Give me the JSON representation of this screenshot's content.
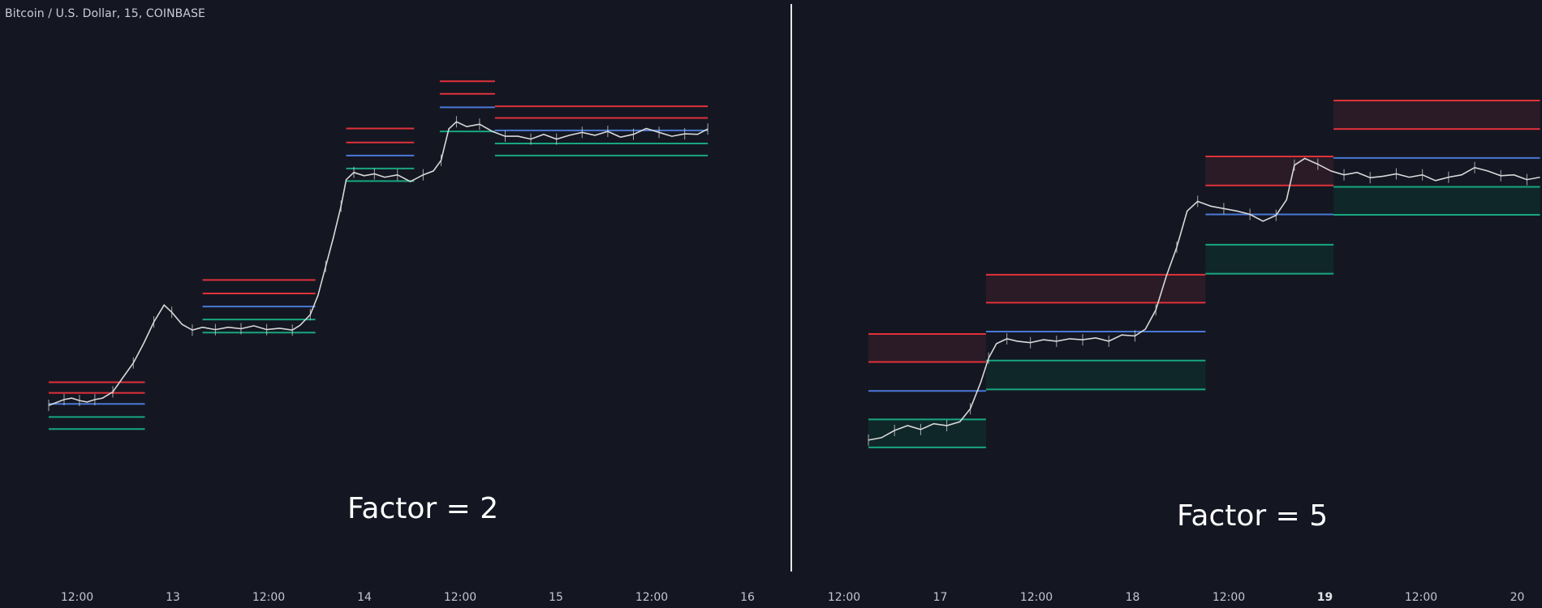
{
  "header": {
    "symbol_title": "Bitcoin / U.S. Dollar, 15, COINBASE"
  },
  "colors": {
    "background": "#141722",
    "resistance": "#e0313a",
    "support": "#18a67f",
    "pivot": "#4a78d6",
    "candle": "#d8d8d8",
    "divider": "#e6e6e6",
    "resistance_fill": "#2a1b26",
    "support_fill": "#10272a"
  },
  "chart_data": [
    {
      "type": "line",
      "annotation": "Factor = 2",
      "x_ticks": [
        {
          "label": "12:00",
          "bold": false
        },
        {
          "label": "13",
          "bold": false
        },
        {
          "label": "12:00",
          "bold": false
        },
        {
          "label": "14",
          "bold": false
        },
        {
          "label": "12:00",
          "bold": false
        },
        {
          "label": "15",
          "bold": false
        },
        {
          "label": "12:00",
          "bold": false
        },
        {
          "label": "16",
          "bold": false
        }
      ],
      "price_path": [
        [
          0.0,
          0.748
        ],
        [
          0.006,
          0.742
        ],
        [
          0.012,
          0.736
        ],
        [
          0.018,
          0.733
        ],
        [
          0.024,
          0.738
        ],
        [
          0.03,
          0.741
        ],
        [
          0.036,
          0.736
        ],
        [
          0.042,
          0.733
        ],
        [
          0.05,
          0.72
        ],
        [
          0.058,
          0.69
        ],
        [
          0.066,
          0.66
        ],
        [
          0.074,
          0.62
        ],
        [
          0.082,
          0.575
        ],
        [
          0.09,
          0.54
        ],
        [
          0.096,
          0.555
        ],
        [
          0.104,
          0.58
        ],
        [
          0.112,
          0.592
        ],
        [
          0.12,
          0.586
        ],
        [
          0.13,
          0.591
        ],
        [
          0.14,
          0.586
        ],
        [
          0.15,
          0.589
        ],
        [
          0.16,
          0.583
        ],
        [
          0.17,
          0.591
        ],
        [
          0.18,
          0.588
        ],
        [
          0.19,
          0.592
        ],
        [
          0.196,
          0.582
        ],
        [
          0.204,
          0.56
        ],
        [
          0.21,
          0.52
        ],
        [
          0.216,
          0.46
        ],
        [
          0.222,
          0.4
        ],
        [
          0.228,
          0.335
        ],
        [
          0.232,
          0.28
        ],
        [
          0.238,
          0.265
        ],
        [
          0.246,
          0.272
        ],
        [
          0.254,
          0.268
        ],
        [
          0.262,
          0.275
        ],
        [
          0.272,
          0.27
        ],
        [
          0.282,
          0.284
        ],
        [
          0.292,
          0.27
        ],
        [
          0.3,
          0.262
        ],
        [
          0.306,
          0.24
        ],
        [
          0.312,
          0.175
        ],
        [
          0.318,
          0.16
        ],
        [
          0.326,
          0.17
        ],
        [
          0.336,
          0.165
        ],
        [
          0.346,
          0.18
        ],
        [
          0.356,
          0.19
        ],
        [
          0.366,
          0.19
        ],
        [
          0.376,
          0.196
        ],
        [
          0.386,
          0.186
        ],
        [
          0.396,
          0.196
        ],
        [
          0.406,
          0.188
        ],
        [
          0.416,
          0.182
        ],
        [
          0.426,
          0.188
        ],
        [
          0.436,
          0.18
        ],
        [
          0.446,
          0.192
        ],
        [
          0.456,
          0.186
        ],
        [
          0.466,
          0.174
        ],
        [
          0.476,
          0.182
        ],
        [
          0.486,
          0.19
        ],
        [
          0.496,
          0.185
        ],
        [
          0.506,
          0.186
        ],
        [
          0.514,
          0.175
        ]
      ],
      "levels": [
        {
          "kind": "resistance",
          "value": 0.7,
          "from": 0.0,
          "to": 0.075
        },
        {
          "kind": "resistance",
          "value": 0.722,
          "from": 0.0,
          "to": 0.075
        },
        {
          "kind": "pivot",
          "value": 0.745,
          "from": 0.0,
          "to": 0.075
        },
        {
          "kind": "support",
          "value": 0.772,
          "from": 0.0,
          "to": 0.075
        },
        {
          "kind": "support",
          "value": 0.797,
          "from": 0.0,
          "to": 0.075
        },
        {
          "kind": "resistance",
          "value": 0.488,
          "from": 0.12,
          "to": 0.208
        },
        {
          "kind": "resistance",
          "value": 0.516,
          "from": 0.12,
          "to": 0.208
        },
        {
          "kind": "pivot",
          "value": 0.543,
          "from": 0.12,
          "to": 0.208
        },
        {
          "kind": "support",
          "value": 0.57,
          "from": 0.12,
          "to": 0.208
        },
        {
          "kind": "support",
          "value": 0.597,
          "from": 0.12,
          "to": 0.208
        },
        {
          "kind": "resistance",
          "value": 0.174,
          "from": 0.232,
          "to": 0.285
        },
        {
          "kind": "resistance",
          "value": 0.203,
          "from": 0.232,
          "to": 0.285
        },
        {
          "kind": "pivot",
          "value": 0.23,
          "from": 0.232,
          "to": 0.285
        },
        {
          "kind": "support",
          "value": 0.257,
          "from": 0.232,
          "to": 0.285
        },
        {
          "kind": "support",
          "value": 0.283,
          "from": 0.232,
          "to": 0.285
        },
        {
          "kind": "resistance",
          "value": 0.076,
          "from": 0.305,
          "to": 0.348
        },
        {
          "kind": "resistance",
          "value": 0.102,
          "from": 0.305,
          "to": 0.348
        },
        {
          "kind": "pivot",
          "value": 0.13,
          "from": 0.305,
          "to": 0.348
        },
        {
          "kind": "support",
          "value": 0.18,
          "from": 0.305,
          "to": 0.348
        },
        {
          "kind": "resistance",
          "value": 0.128,
          "from": 0.348,
          "to": 0.514
        },
        {
          "kind": "resistance",
          "value": 0.152,
          "from": 0.348,
          "to": 0.514
        },
        {
          "kind": "pivot",
          "value": 0.178,
          "from": 0.348,
          "to": 0.514
        },
        {
          "kind": "support",
          "value": 0.205,
          "from": 0.348,
          "to": 0.514
        },
        {
          "kind": "support",
          "value": 0.23,
          "from": 0.348,
          "to": 0.514
        }
      ]
    },
    {
      "type": "line",
      "annotation": "Factor = 5",
      "x_ticks": [
        {
          "label": "12:00",
          "bold": false
        },
        {
          "label": "17",
          "bold": false
        },
        {
          "label": "12:00",
          "bold": false
        },
        {
          "label": "18",
          "bold": false
        },
        {
          "label": "12:00",
          "bold": false
        },
        {
          "label": "19",
          "bold": true
        },
        {
          "label": "12:00",
          "bold": false
        },
        {
          "label": "20",
          "bold": false
        }
      ],
      "price_path": [
        [
          0.0,
          0.82
        ],
        [
          0.01,
          0.815
        ],
        [
          0.02,
          0.8
        ],
        [
          0.03,
          0.79
        ],
        [
          0.04,
          0.798
        ],
        [
          0.05,
          0.786
        ],
        [
          0.06,
          0.79
        ],
        [
          0.07,
          0.782
        ],
        [
          0.078,
          0.755
        ],
        [
          0.086,
          0.7
        ],
        [
          0.092,
          0.65
        ],
        [
          0.098,
          0.62
        ],
        [
          0.106,
          0.61
        ],
        [
          0.114,
          0.615
        ],
        [
          0.124,
          0.618
        ],
        [
          0.134,
          0.612
        ],
        [
          0.144,
          0.615
        ],
        [
          0.154,
          0.61
        ],
        [
          0.164,
          0.612
        ],
        [
          0.174,
          0.608
        ],
        [
          0.184,
          0.615
        ],
        [
          0.194,
          0.602
        ],
        [
          0.204,
          0.604
        ],
        [
          0.212,
          0.59
        ],
        [
          0.22,
          0.55
        ],
        [
          0.228,
          0.48
        ],
        [
          0.236,
          0.42
        ],
        [
          0.244,
          0.345
        ],
        [
          0.252,
          0.325
        ],
        [
          0.262,
          0.335
        ],
        [
          0.272,
          0.34
        ],
        [
          0.282,
          0.345
        ],
        [
          0.292,
          0.352
        ],
        [
          0.302,
          0.366
        ],
        [
          0.312,
          0.354
        ],
        [
          0.32,
          0.322
        ],
        [
          0.326,
          0.25
        ],
        [
          0.334,
          0.236
        ],
        [
          0.344,
          0.248
        ],
        [
          0.354,
          0.262
        ],
        [
          0.364,
          0.27
        ],
        [
          0.374,
          0.265
        ],
        [
          0.384,
          0.276
        ],
        [
          0.394,
          0.273
        ],
        [
          0.404,
          0.268
        ],
        [
          0.414,
          0.275
        ],
        [
          0.424,
          0.27
        ],
        [
          0.434,
          0.282
        ],
        [
          0.444,
          0.275
        ],
        [
          0.454,
          0.27
        ],
        [
          0.464,
          0.255
        ],
        [
          0.474,
          0.262
        ],
        [
          0.484,
          0.272
        ],
        [
          0.494,
          0.27
        ],
        [
          0.504,
          0.28
        ],
        [
          0.514,
          0.275
        ]
      ],
      "levels": [
        {
          "kind": "resistance",
          "value": 0.6,
          "from": 0.0,
          "to": 0.09,
          "fill_to": 0.658
        },
        {
          "kind": "resistance",
          "value": 0.658,
          "from": 0.0,
          "to": 0.09
        },
        {
          "kind": "pivot",
          "value": 0.718,
          "from": 0.0,
          "to": 0.09
        },
        {
          "kind": "support",
          "value": 0.777,
          "from": 0.0,
          "to": 0.09,
          "fill_to": 0.835
        },
        {
          "kind": "support",
          "value": 0.835,
          "from": 0.0,
          "to": 0.09
        },
        {
          "kind": "resistance",
          "value": 0.477,
          "from": 0.09,
          "to": 0.258,
          "fill_to": 0.535
        },
        {
          "kind": "resistance",
          "value": 0.535,
          "from": 0.09,
          "to": 0.258
        },
        {
          "kind": "pivot",
          "value": 0.595,
          "from": 0.09,
          "to": 0.258
        },
        {
          "kind": "support",
          "value": 0.655,
          "from": 0.09,
          "to": 0.258,
          "fill_to": 0.715
        },
        {
          "kind": "support",
          "value": 0.715,
          "from": 0.09,
          "to": 0.258
        },
        {
          "kind": "resistance",
          "value": 0.232,
          "from": 0.258,
          "to": 0.356,
          "fill_to": 0.292
        },
        {
          "kind": "resistance",
          "value": 0.292,
          "from": 0.258,
          "to": 0.356
        },
        {
          "kind": "pivot",
          "value": 0.352,
          "from": 0.258,
          "to": 0.356
        },
        {
          "kind": "support",
          "value": 0.415,
          "from": 0.258,
          "to": 0.356,
          "fill_to": 0.475
        },
        {
          "kind": "support",
          "value": 0.475,
          "from": 0.258,
          "to": 0.356
        },
        {
          "kind": "resistance",
          "value": 0.116,
          "from": 0.356,
          "to": 0.514,
          "fill_to": 0.175
        },
        {
          "kind": "resistance",
          "value": 0.175,
          "from": 0.356,
          "to": 0.514
        },
        {
          "kind": "pivot",
          "value": 0.235,
          "from": 0.356,
          "to": 0.514
        },
        {
          "kind": "support",
          "value": 0.295,
          "from": 0.356,
          "to": 0.514,
          "fill_to": 0.353
        },
        {
          "kind": "support",
          "value": 0.353,
          "from": 0.356,
          "to": 0.514
        }
      ]
    }
  ]
}
